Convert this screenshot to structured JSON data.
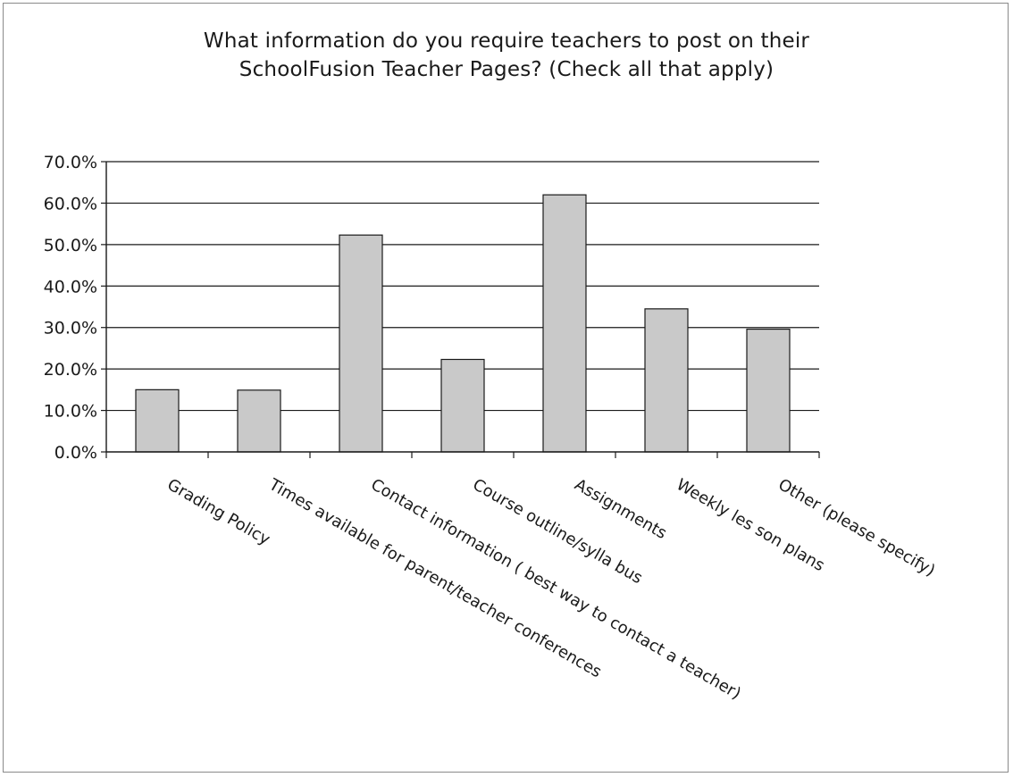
{
  "chart_data": {
    "type": "bar",
    "title": "What information do you require teachers to post on their SchoolFusion Teacher Pages? (Check all that apply)",
    "title_lines": [
      "What information do you require teachers to post on their",
      "SchoolFusion Teacher Pages? (Check all that apply)"
    ],
    "categories": [
      "Grading Policy",
      "Times available for parent/teacher conferences",
      "Contact information ( best way to contact a teacher)",
      "Course outline/sylla bus",
      "Assignments",
      "Weekly les son plans",
      "Other (please specify)"
    ],
    "values": [
      15.0,
      14.9,
      52.3,
      22.3,
      62.0,
      34.5,
      29.6
    ],
    "ylim": [
      0,
      70
    ],
    "yticks": [
      "0.0%",
      "10.0%",
      "20.0%",
      "30.0%",
      "40.0%",
      "50.0%",
      "60.0%",
      "70.0%"
    ],
    "y_tick_values": [
      0,
      10,
      20,
      30,
      40,
      50,
      60,
      70
    ],
    "grid": true,
    "xlabel": "",
    "ylabel": "",
    "colors": {
      "bar_fill": "#c9c9c9",
      "bar_stroke": "#1a1a1a",
      "grid": "#1a1a1a",
      "axis": "#1a1a1a"
    }
  }
}
